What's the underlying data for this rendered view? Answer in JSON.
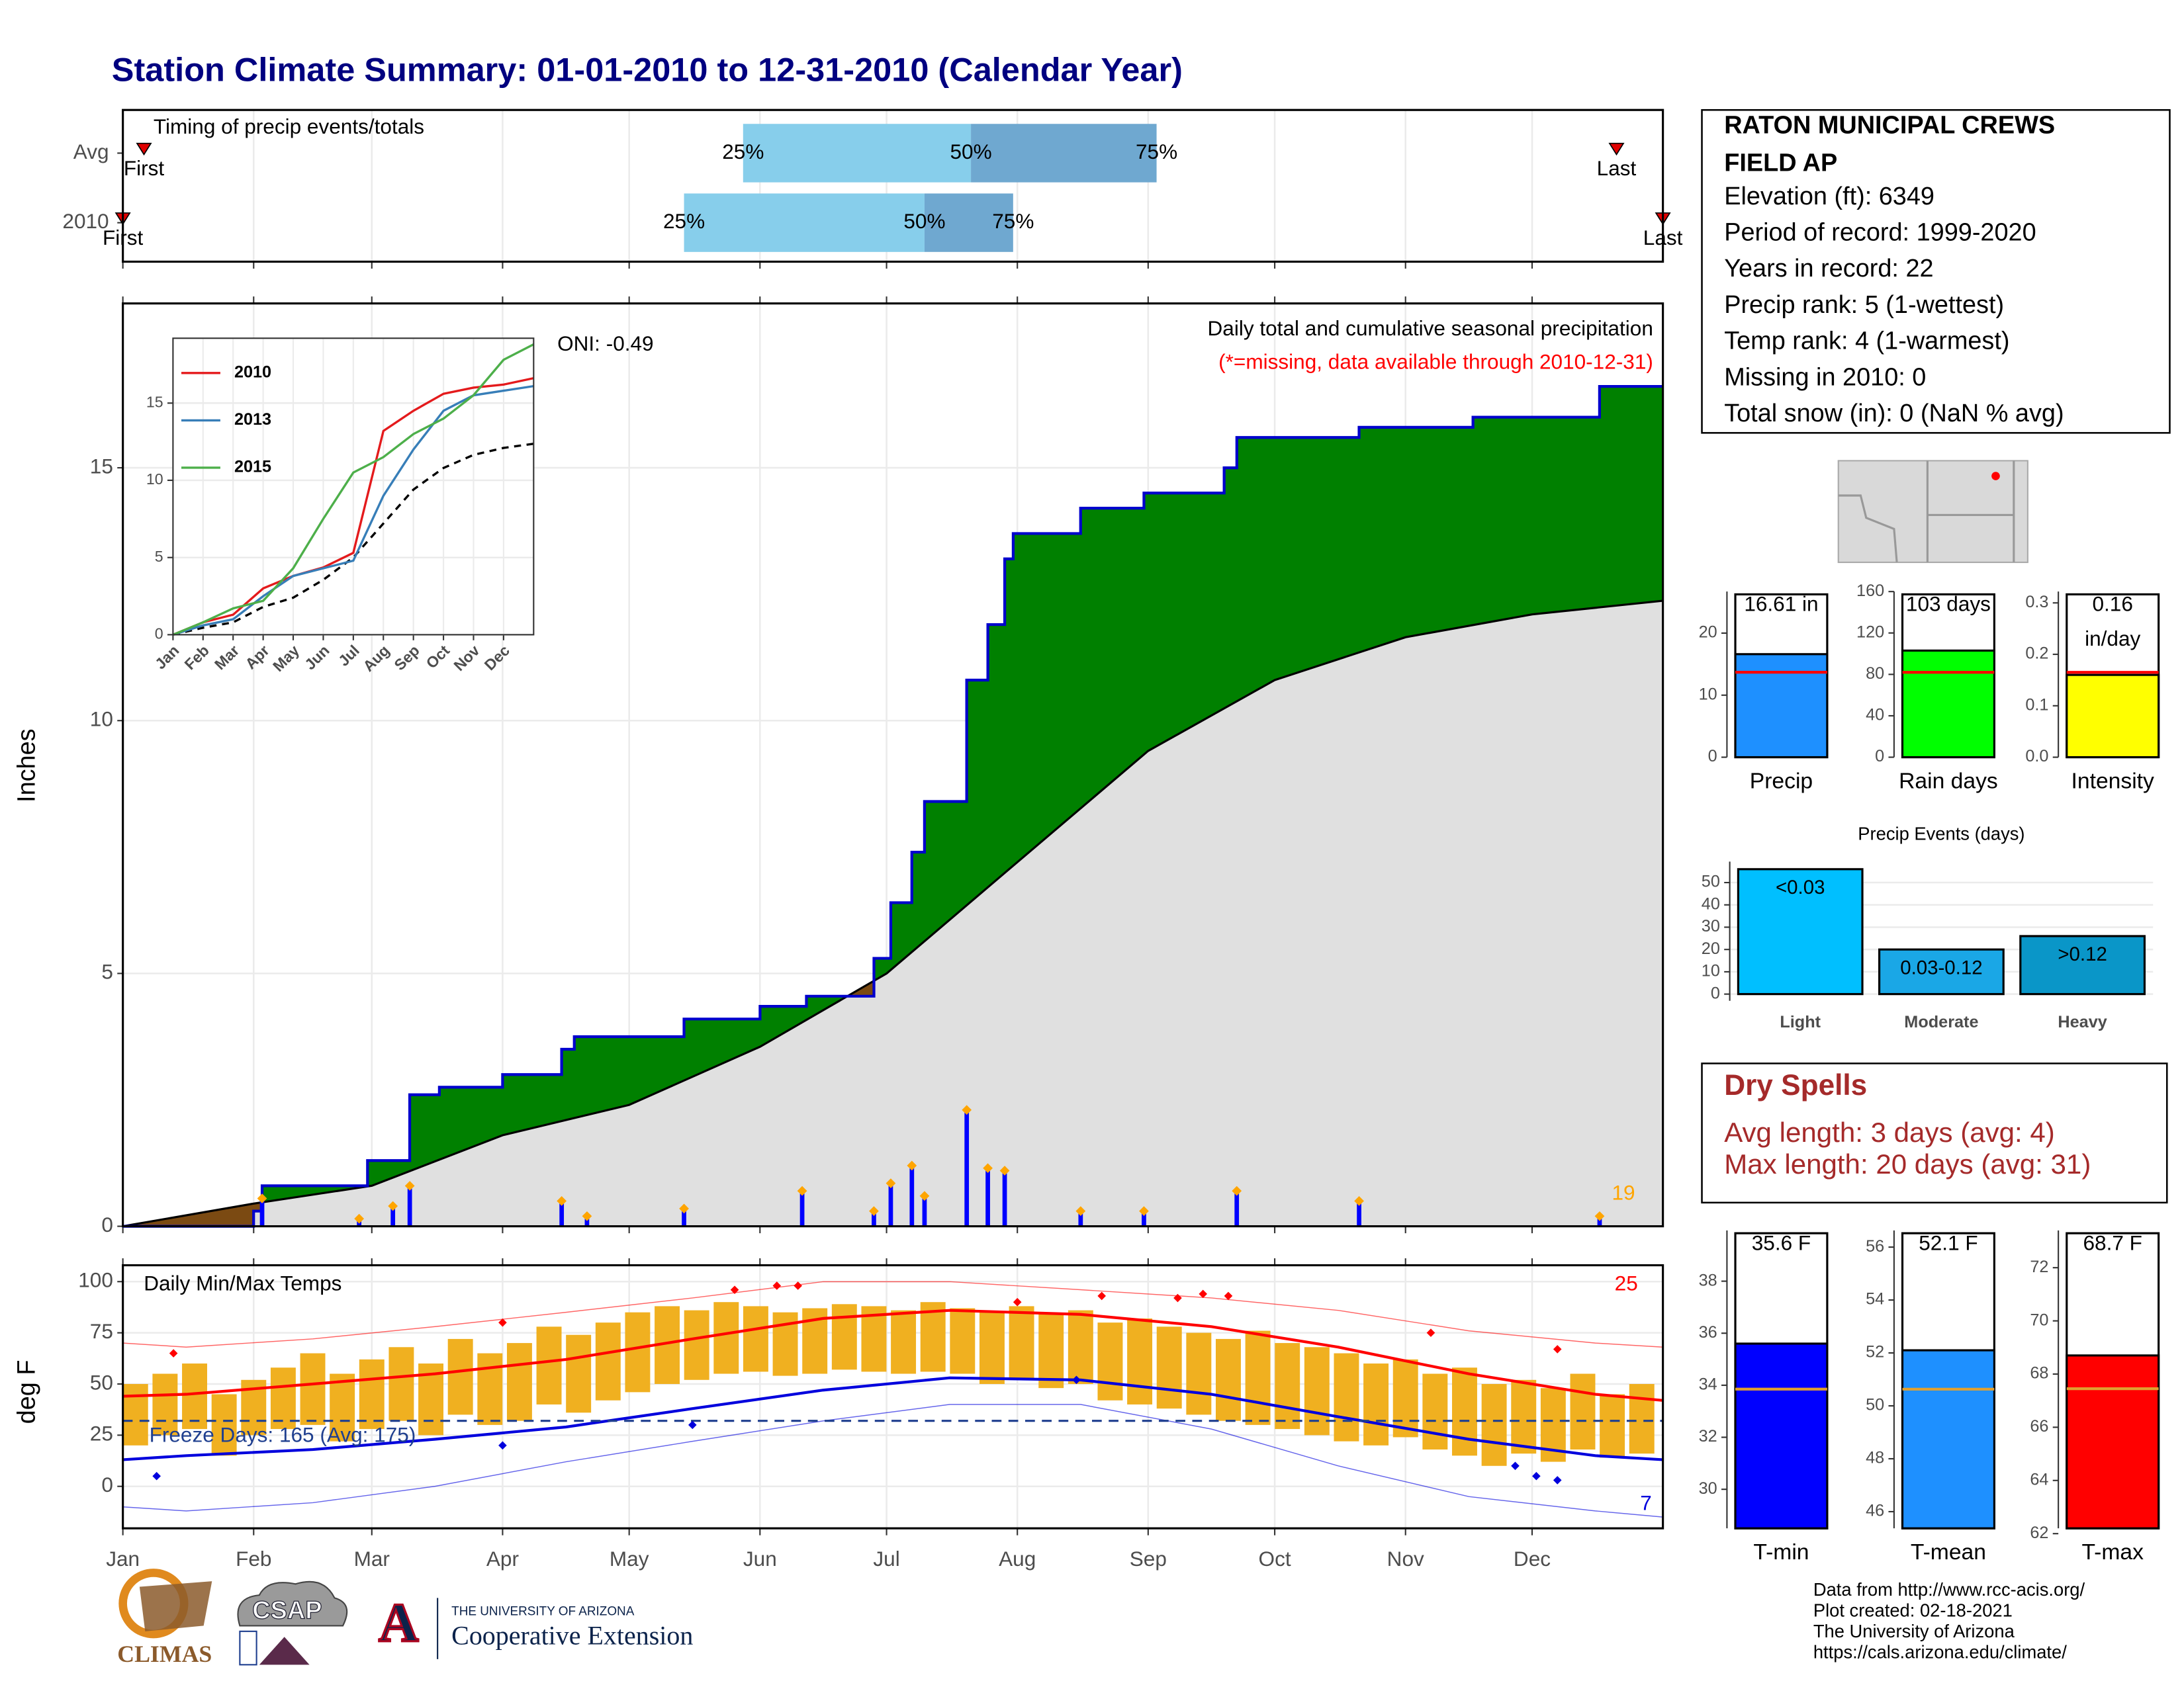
{
  "title": "Station Climate Summary: 01-01-2010 to 12-31-2010 (Calendar Year)",
  "chart_data": [
    {
      "type": "timing",
      "title": "Timing of precip events/totals",
      "xlim": [
        0,
        365
      ],
      "colors": [
        "#87ceeb",
        "#6fa8d0"
      ],
      "rows": [
        {
          "name": "Avg",
          "first": 5,
          "last": 354,
          "first_label": "First",
          "last_label": "Last",
          "quartiles": [
            147,
            201,
            245
          ],
          "quartile_labels": [
            "25%",
            "50%",
            "75%"
          ]
        },
        {
          "name": "2010",
          "first": 0,
          "last": 365,
          "first_label": "First",
          "last_label": "Last",
          "quartiles": [
            133,
            190,
            211
          ],
          "quartile_labels": [
            "25%",
            "50%",
            "75%"
          ]
        }
      ]
    },
    {
      "type": "cumulative",
      "title": "Daily total and cumulative seasonal precipitation",
      "subtitle": "(*=missing, data available through 2010-12-31)",
      "annotation": "ONI: -0.49",
      "count": 19,
      "ylabel": "Inches",
      "xlim": [
        0,
        365
      ],
      "ylim": [
        0,
        18.25
      ],
      "yticks": [
        0,
        5,
        10,
        15
      ],
      "grid": true,
      "observed": {
        "color": "#008000",
        "line_color": "#0000cd",
        "x": [
          0,
          31,
          33,
          58,
          68,
          75,
          90,
          104,
          107,
          133,
          151,
          162,
          178,
          182,
          187,
          190,
          200,
          205,
          209,
          211,
          227,
          242,
          261,
          264,
          293,
          320,
          350,
          365
        ],
        "values": [
          0,
          0.3,
          0.8,
          1.3,
          2.6,
          2.75,
          3.0,
          3.5,
          3.75,
          4.1,
          4.35,
          4.55,
          5.3,
          6.4,
          7.4,
          8.4,
          10.8,
          11.9,
          13.2,
          13.7,
          14.2,
          14.5,
          15.0,
          15.6,
          15.8,
          16.0,
          16.61,
          16.61
        ]
      },
      "average": {
        "color": "#e0e0e0",
        "deficit_color": "#7b4a12",
        "line_color": "#000000",
        "x": [
          0,
          31,
          59,
          90,
          120,
          151,
          181,
          212,
          243,
          273,
          304,
          334,
          365
        ],
        "values": [
          0,
          0.45,
          0.8,
          1.8,
          2.4,
          3.55,
          5.0,
          7.2,
          9.4,
          10.8,
          11.65,
          12.1,
          12.37
        ]
      },
      "daily": {
        "color": "#0000ff",
        "marker_color": "#ffa500",
        "x": [
          33,
          56,
          64,
          68,
          104,
          110,
          133,
          161,
          178,
          182,
          187,
          190,
          200,
          205,
          209,
          227,
          242,
          264,
          293,
          350
        ],
        "values": [
          0.55,
          0.15,
          0.4,
          0.8,
          0.5,
          0.2,
          0.35,
          0.7,
          0.3,
          0.85,
          1.2,
          0.6,
          2.3,
          1.15,
          1.1,
          0.3,
          0.3,
          0.7,
          0.5,
          0.2
        ]
      }
    },
    {
      "type": "line",
      "xlim": [
        0,
        12
      ],
      "ylim": [
        0,
        19.2
      ],
      "yticks": [
        0,
        5,
        10,
        15
      ],
      "grid": true,
      "xticks": [
        {
          "value": 0,
          "label": "Jan"
        },
        {
          "value": 1,
          "label": "Feb"
        },
        {
          "value": 2,
          "label": "Mar"
        },
        {
          "value": 3,
          "label": "Apr"
        },
        {
          "value": 4,
          "label": "May"
        },
        {
          "value": 5,
          "label": "Jun"
        },
        {
          "value": 6,
          "label": "Jul"
        },
        {
          "value": 7,
          "label": "Aug"
        },
        {
          "value": 8,
          "label": "Sep"
        },
        {
          "value": 9,
          "label": "Oct"
        },
        {
          "value": 10,
          "label": "Nov"
        },
        {
          "value": 11,
          "label": "Dec"
        }
      ],
      "x": [
        0,
        1,
        2,
        3,
        4,
        5,
        6,
        7,
        8,
        9,
        10,
        11,
        12
      ],
      "series": [
        {
          "name": "2010",
          "color": "#e41a1c",
          "values": [
            0,
            0.8,
            1.3,
            3.0,
            3.8,
            4.35,
            5.3,
            13.2,
            14.5,
            15.6,
            16.0,
            16.2,
            16.61
          ]
        },
        {
          "name": "2013",
          "color": "#377eb8",
          "values": [
            0,
            0.6,
            1.0,
            2.5,
            3.8,
            4.3,
            4.8,
            9.0,
            12.0,
            14.5,
            15.5,
            15.8,
            16.1
          ]
        },
        {
          "name": "2015",
          "color": "#4daf4a",
          "values": [
            0,
            0.8,
            1.7,
            2.2,
            4.3,
            7.5,
            10.5,
            11.5,
            13.0,
            14.0,
            15.5,
            17.8,
            18.8
          ]
        }
      ],
      "average": {
        "color": "#000000",
        "values": [
          0,
          0.45,
          0.8,
          1.8,
          2.4,
          3.55,
          5.0,
          7.2,
          9.4,
          10.8,
          11.65,
          12.1,
          12.37
        ]
      }
    },
    {
      "type": "temperature",
      "title": "Daily Min/Max Temps",
      "ylabel": "deg F",
      "xlim": [
        0,
        365
      ],
      "ylim": [
        -20.5,
        108
      ],
      "yticks": [
        0,
        25,
        50,
        75,
        100
      ],
      "grid": true,
      "xticks": [
        {
          "value": 0,
          "label": "Jan"
        },
        {
          "value": 31,
          "label": "Feb"
        },
        {
          "value": 59,
          "label": "Mar"
        },
        {
          "value": 90,
          "label": "Apr"
        },
        {
          "value": 120,
          "label": "May"
        },
        {
          "value": 151,
          "label": "Jun"
        },
        {
          "value": 181,
          "label": "Jul"
        },
        {
          "value": 212,
          "label": "Aug"
        },
        {
          "value": 243,
          "label": "Sep"
        },
        {
          "value": 273,
          "label": "Oct"
        },
        {
          "value": 304,
          "label": "Nov"
        },
        {
          "value": 334,
          "label": "Dec"
        }
      ],
      "freeze_label": "Freeze Days: 165 (Avg: 175)",
      "freeze_line": 32,
      "freeze_color": "#1f3f8f",
      "high_count": 25,
      "low_count": 7,
      "range": {
        "color": "#f0b020",
        "x": [
          3,
          10,
          17,
          24,
          31,
          38,
          45,
          52,
          59,
          66,
          73,
          80,
          87,
          94,
          101,
          108,
          115,
          122,
          129,
          136,
          143,
          150,
          157,
          164,
          171,
          178,
          185,
          192,
          199,
          206,
          213,
          220,
          227,
          234,
          241,
          248,
          255,
          262,
          269,
          276,
          283,
          290,
          297,
          304,
          311,
          318,
          325,
          332,
          339,
          346,
          353,
          360
        ],
        "max": [
          50,
          55,
          60,
          45,
          52,
          58,
          65,
          55,
          62,
          68,
          60,
          72,
          65,
          70,
          78,
          74,
          80,
          85,
          88,
          86,
          90,
          88,
          85,
          87,
          89,
          88,
          86,
          90,
          87,
          85,
          88,
          84,
          86,
          80,
          82,
          78,
          75,
          72,
          76,
          70,
          68,
          65,
          60,
          62,
          55,
          58,
          50,
          52,
          48,
          55,
          45,
          50
        ],
        "min": [
          20,
          25,
          28,
          15,
          25,
          28,
          30,
          22,
          28,
          32,
          25,
          35,
          30,
          32,
          40,
          36,
          42,
          46,
          50,
          52,
          55,
          56,
          54,
          55,
          57,
          56,
          55,
          56,
          55,
          50,
          52,
          48,
          50,
          42,
          40,
          38,
          35,
          32,
          30,
          28,
          25,
          22,
          20,
          24,
          18,
          15,
          10,
          16,
          12,
          18,
          14,
          16
        ]
      },
      "normals": {
        "x": [
          0,
          15,
          45,
          74,
          105,
          135,
          166,
          196,
          227,
          258,
          288,
          319,
          349,
          365
        ],
        "max": [
          44,
          45,
          50,
          55,
          62,
          72,
          82,
          86,
          84,
          78,
          68,
          55,
          45,
          42
        ],
        "min": [
          13,
          15,
          18,
          23,
          29,
          38,
          47,
          53,
          52,
          45,
          34,
          23,
          15,
          13
        ],
        "record_max": [
          70,
          68,
          72,
          78,
          85,
          92,
          100,
          100,
          96,
          92,
          86,
          76,
          70,
          68
        ],
        "record_min": [
          -10,
          -12,
          -8,
          0,
          12,
          22,
          32,
          40,
          40,
          28,
          10,
          -5,
          -12,
          -15
        ],
        "max_color": "#ff0000",
        "min_color": "#0000dd"
      },
      "record_highs": {
        "color": "#ff0000",
        "x": [
          12,
          90,
          145,
          155,
          160,
          212,
          232,
          250,
          256,
          262,
          310,
          340
        ],
        "values": [
          65,
          80,
          96,
          98,
          98,
          90,
          93,
          92,
          94,
          93,
          75,
          67
        ]
      },
      "record_lows": {
        "color": "#0000dd",
        "x": [
          8,
          90,
          135,
          226,
          330,
          335,
          340
        ],
        "values": [
          5,
          20,
          30,
          52,
          10,
          5,
          3
        ]
      }
    },
    {
      "type": "summary",
      "category": "Precip",
      "values": [
        16.61
      ],
      "value_labels": [
        [
          "16.61 in"
        ]
      ],
      "normal": 13.7,
      "normal_color": "#ff0000",
      "color": "#1e90ff",
      "ylim": [
        0,
        26.7
      ],
      "yticks": [
        0,
        10,
        20
      ]
    },
    {
      "type": "summary",
      "category": "Rain days",
      "values": [
        103
      ],
      "value_labels": [
        [
          "103 days"
        ]
      ],
      "normal": 82,
      "normal_color": "#ff0000",
      "color": "#00ff00",
      "ylim": [
        0,
        160
      ],
      "yticks": [
        0,
        40,
        80,
        120,
        160
      ]
    },
    {
      "type": "summary",
      "category": "Intensity",
      "values": [
        0.16
      ],
      "value_labels": [
        [
          "0.16",
          "in/day"
        ]
      ],
      "normal": 0.165,
      "normal_color": "#ff0000",
      "color": "#ffff00",
      "ylim": [
        0,
        0.322
      ],
      "yticks": [
        {
          "value": 0,
          "label": "0.0"
        },
        0.1,
        0.2,
        0.3
      ]
    },
    {
      "type": "events",
      "title": "Precip Events (days)",
      "categories": [
        "Light",
        "Moderate",
        "Heavy"
      ],
      "values": [
        56,
        20,
        26
      ],
      "value_labels": [
        "<0.03",
        "0.03-0.12",
        ">0.12"
      ],
      "colors": [
        "#00bfff",
        "#1aa7e6",
        "#0a96c8"
      ],
      "ylim": [
        -3,
        59.4
      ],
      "yticks": [
        0,
        10,
        20,
        30,
        40,
        50
      ],
      "grid": true
    },
    {
      "type": "summary",
      "category": "T-min",
      "values": [
        35.6
      ],
      "value_labels": [
        [
          "35.6 F"
        ]
      ],
      "normal": 33.85,
      "normal_color": "#e0a030",
      "color": "#0000ff",
      "ylim": [
        28.5,
        39.95
      ],
      "yticks": [
        30,
        32,
        34,
        36,
        38
      ]
    },
    {
      "type": "summary",
      "category": "T-mean",
      "values": [
        52.1
      ],
      "value_labels": [
        [
          "52.1 F"
        ]
      ],
      "normal": 50.63,
      "normal_color": "#e0a030",
      "color": "#1e90ff",
      "ylim": [
        45.37,
        56.63
      ],
      "yticks": [
        46,
        48,
        50,
        52,
        54,
        56
      ]
    },
    {
      "type": "summary",
      "category": "T-max",
      "values": [
        68.7
      ],
      "value_labels": [
        [
          "68.7 F"
        ]
      ],
      "normal": 67.45,
      "normal_color": "#e0a030",
      "color": "#ff0000",
      "ylim": [
        62.2,
        73.4
      ],
      "yticks": [
        62,
        64,
        66,
        68,
        70,
        72
      ]
    }
  ],
  "station": {
    "name_lines": [
      "RATON MUNICIPAL CREWS",
      "FIELD AP"
    ],
    "lines": [
      "Elevation (ft): 6349",
      "Period of record: 1999-2020",
      "Years in record: 22",
      "Precip rank: 5 (1-wettest)",
      "Temp rank: 4 (1-warmest)",
      "Missing in 2010: 0",
      "Total snow (in): 0 (NaN % avg)"
    ]
  },
  "dry_spells": {
    "title": "Dry Spells",
    "lines": [
      "Avg length: 3 days (avg: 4)",
      "Max length: 20 days (avg: 31)"
    ]
  },
  "footer": {
    "lines": [
      "Data from http://www.rcc-acis.org/",
      "Plot created: 02-18-2021",
      "The University of Arizona",
      "https://cals.arizona.edu/climate/"
    ]
  },
  "logos": {
    "climas": "CLIMAS",
    "csap": "CSAP",
    "ua": "A",
    "university": "THE UNIVERSITY OF ARIZONA",
    "extension": "Cooperative Extension"
  }
}
